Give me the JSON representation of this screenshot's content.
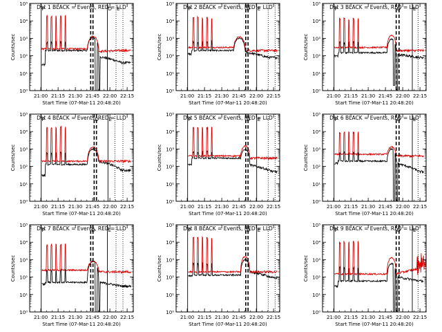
{
  "figure": {
    "xlabel": "Start Time (07-Mar-11 20:48:20)",
    "ylabel": "Counts/sec",
    "x_ticks": [
      "21:00",
      "21:15",
      "21:30",
      "21:45",
      "22:00",
      "22:15"
    ],
    "y_ticks": [
      "10⁰",
      "10¹",
      "10²",
      "10³",
      "10⁴",
      "10⁵"
    ],
    "flag_labels": [
      "P",
      "D",
      "E"
    ],
    "colors": {
      "events": "#000000",
      "lld": "#e00000"
    }
  },
  "chart_data": [
    {
      "type": "line",
      "title": "Det 1 BLACK = Events, RED = LLD",
      "x_unit": "minutes after 20:48:20",
      "xlim": [
        2,
        92
      ],
      "ylim": [
        1,
        100000
      ],
      "y_scale": "log",
      "series": [
        {
          "name": "Events",
          "color": "#000000",
          "baseline": 200,
          "spike_peak": 700,
          "pre_level": 30,
          "bump_peak": 1100,
          "post_level": 90,
          "post_dip": 0.1,
          "end_level": 40
        },
        {
          "name": "LLD",
          "color": "#e00000",
          "baseline": 250,
          "spike_peak": 22000,
          "bump_peak": 1300,
          "post_level": 180,
          "end_level": 200
        }
      ],
      "spikes_min": [
        17,
        21,
        25,
        29,
        33
      ],
      "bump_min": [
        52,
        62
      ],
      "vlines": [
        {
          "x": 12,
          "style": "solid",
          "label": "P"
        },
        {
          "x": 55,
          "style": "dashed",
          "label": ""
        },
        {
          "x": 57,
          "style": "dashed",
          "label": ""
        },
        {
          "x": 69.5,
          "style": "solid",
          "label": "D"
        },
        {
          "x": 77,
          "style": "dotted",
          "label": "E"
        },
        {
          "x": 83,
          "style": "dotted",
          "label": ""
        }
      ]
    },
    {
      "type": "line",
      "title": "Det 2 BLACK = Events, RED = LLD",
      "x_unit": "minutes after 20:48:20",
      "xlim": [
        2,
        92
      ],
      "ylim": [
        1,
        100000
      ],
      "y_scale": "log",
      "series": [
        {
          "name": "Events",
          "color": "#000000",
          "baseline": 200,
          "spike_peak": 800,
          "pre_level": 130,
          "bump_peak": 1000,
          "post_level": 160,
          "post_dip": 0,
          "end_level": 80
        },
        {
          "name": "LLD",
          "color": "#e00000",
          "baseline": 300,
          "spike_peak": 18000,
          "bump_peak": 1200,
          "post_level": 200,
          "end_level": 200
        }
      ],
      "spikes_min": [
        17,
        21,
        25,
        29,
        33
      ],
      "bump_min": [
        52,
        62
      ],
      "vlines": [
        {
          "x": 12,
          "style": "solid",
          "label": "P"
        },
        {
          "x": 62.5,
          "style": "dashed",
          "label": "D"
        },
        {
          "x": 64.5,
          "style": "dashed",
          "label": ""
        },
        {
          "x": 72,
          "style": "solid",
          "label": "E"
        },
        {
          "x": 82,
          "style": "dotted",
          "label": ""
        },
        {
          "x": 88,
          "style": "dotted",
          "label": ""
        }
      ]
    },
    {
      "type": "line",
      "title": "Det 3 BLACK = Events, RED = LLD",
      "x_unit": "minutes after 20:48:20",
      "xlim": [
        2,
        92
      ],
      "ylim": [
        1,
        100000
      ],
      "y_scale": "log",
      "series": [
        {
          "name": "Events",
          "color": "#000000",
          "baseline": 150,
          "spike_peak": 700,
          "pre_level": 100,
          "bump_peak": 900,
          "post_level": 120,
          "post_dip": 0.2,
          "end_level": 80
        },
        {
          "name": "LLD",
          "color": "#e00000",
          "baseline": 300,
          "spike_peak": 15000,
          "bump_peak": 1500,
          "post_level": 200,
          "end_level": 200
        }
      ],
      "spikes_min": [
        17,
        21,
        25,
        29,
        33
      ],
      "bump_min": [
        58,
        66
      ],
      "vlines": [
        {
          "x": 12,
          "style": "solid",
          "label": "P"
        },
        {
          "x": 66,
          "style": "dashed",
          "label": "D"
        },
        {
          "x": 68.5,
          "style": "dashed",
          "label": ""
        },
        {
          "x": 80,
          "style": "solid",
          "label": "E"
        },
        {
          "x": 85,
          "style": "dotted",
          "label": ""
        },
        {
          "x": 92,
          "style": "dotted",
          "label": ""
        }
      ]
    },
    {
      "type": "line",
      "title": "Det 4 BLACK = Events, RED = LLD",
      "x_unit": "minutes after 20:48:20",
      "xlim": [
        2,
        92
      ],
      "ylim": [
        1,
        100000
      ],
      "y_scale": "log",
      "series": [
        {
          "name": "Events",
          "color": "#000000",
          "baseline": 130,
          "spike_peak": 700,
          "pre_level": 30,
          "bump_peak": 1000,
          "post_level": 200,
          "post_dip": 0,
          "end_level": 60
        },
        {
          "name": "LLD",
          "color": "#e00000",
          "baseline": 200,
          "spike_peak": 20000,
          "bump_peak": 1300,
          "post_level": 200,
          "end_level": 200
        }
      ],
      "spikes_min": [
        17,
        21,
        25,
        29,
        33
      ],
      "bump_min": [
        52,
        62
      ],
      "vlines": [
        {
          "x": 12,
          "style": "solid",
          "label": "P"
        },
        {
          "x": 58,
          "style": "dashed",
          "label": "D"
        },
        {
          "x": 60,
          "style": "dashed",
          "label": ""
        },
        {
          "x": 70,
          "style": "solid",
          "label": "E"
        },
        {
          "x": 76,
          "style": "dotted",
          "label": ""
        },
        {
          "x": 83,
          "style": "dotted",
          "label": ""
        }
      ]
    },
    {
      "type": "line",
      "title": "Det 5 BLACK = Events, RED = LLD",
      "x_unit": "minutes after 20:48:20",
      "xlim": [
        2,
        92
      ],
      "ylim": [
        1,
        100000
      ],
      "y_scale": "log",
      "series": [
        {
          "name": "Events",
          "color": "#000000",
          "baseline": 300,
          "spike_peak": 800,
          "pre_level": 130,
          "bump_peak": 900,
          "post_level": 120,
          "post_dip": 0,
          "end_level": 50
        },
        {
          "name": "LLD",
          "color": "#e00000",
          "baseline": 400,
          "spike_peak": 20000,
          "bump_peak": 1500,
          "post_level": 300,
          "end_level": 300
        }
      ],
      "spikes_min": [
        17,
        21,
        25,
        29,
        33
      ],
      "bump_min": [
        58,
        66
      ],
      "vlines": [
        {
          "x": 12,
          "style": "solid",
          "label": "P"
        },
        {
          "x": 62.5,
          "style": "dashed",
          "label": "D"
        },
        {
          "x": 64.5,
          "style": "dashed",
          "label": ""
        },
        {
          "x": 72,
          "style": "solid",
          "label": "E"
        },
        {
          "x": 82,
          "style": "dotted",
          "label": ""
        },
        {
          "x": 88,
          "style": "dotted",
          "label": ""
        }
      ]
    },
    {
      "type": "line",
      "title": "Det 6 BLACK = Events, RED = LLD",
      "x_unit": "minutes after 20:48:20",
      "xlim": [
        2,
        92
      ],
      "ylim": [
        1,
        100000
      ],
      "y_scale": "log",
      "series": [
        {
          "name": "Events",
          "color": "#000000",
          "baseline": 200,
          "spike_peak": 700,
          "pre_level": 150,
          "bump_peak": 1000,
          "post_level": 150,
          "post_dip": 0.1,
          "end_level": 50
        },
        {
          "name": "LLD",
          "color": "#e00000",
          "baseline": 500,
          "spike_peak": 10000,
          "bump_peak": 1300,
          "post_level": 400,
          "end_level": 400
        }
      ],
      "spikes_min": [
        17,
        21,
        25,
        29,
        33
      ],
      "bump_min": [
        58,
        66
      ],
      "vlines": [
        {
          "x": 12,
          "style": "solid",
          "label": "P"
        },
        {
          "x": 66,
          "style": "dashed",
          "label": "D"
        },
        {
          "x": 68.5,
          "style": "dashed",
          "label": ""
        },
        {
          "x": 80,
          "style": "solid",
          "label": "E"
        },
        {
          "x": 85,
          "style": "dotted",
          "label": ""
        },
        {
          "x": 92,
          "style": "dotted",
          "label": ""
        }
      ]
    },
    {
      "type": "line",
      "title": "Det 7 BLACK = Events, RED = LLD",
      "x_unit": "minutes after 20:48:20",
      "xlim": [
        2,
        92
      ],
      "ylim": [
        1,
        100000
      ],
      "y_scale": "log",
      "series": [
        {
          "name": "Events",
          "color": "#000000",
          "baseline": 50,
          "spike_peak": 300,
          "pre_level": 40,
          "bump_peak": 800,
          "post_level": 50,
          "post_dip": 0.1,
          "end_level": 30
        },
        {
          "name": "LLD",
          "color": "#e00000",
          "baseline": 250,
          "spike_peak": 8000,
          "bump_peak": 800,
          "post_level": 200,
          "end_level": 200
        }
      ],
      "spikes_min": [
        17,
        21,
        25,
        29,
        33
      ],
      "bump_min": [
        52,
        62
      ],
      "vlines": [
        {
          "x": 12,
          "style": "solid",
          "label": "P"
        },
        {
          "x": 55,
          "style": "dashed",
          "label": "D"
        },
        {
          "x": 57,
          "style": "dashed",
          "label": ""
        },
        {
          "x": 69.5,
          "style": "solid",
          "label": "E"
        },
        {
          "x": 77,
          "style": "dotted",
          "label": ""
        },
        {
          "x": 83,
          "style": "dotted",
          "label": ""
        }
      ]
    },
    {
      "type": "line",
      "title": "Det 8 BLACK = Events, RED = LLD",
      "x_unit": "minutes after 20:48:20",
      "xlim": [
        2,
        92
      ],
      "ylim": [
        1,
        100000
      ],
      "y_scale": "log",
      "series": [
        {
          "name": "Events",
          "color": "#000000",
          "baseline": 130,
          "spike_peak": 700,
          "pre_level": 110,
          "bump_peak": 1000,
          "post_level": 200,
          "post_dip": 0,
          "end_level": 90
        },
        {
          "name": "LLD",
          "color": "#e00000",
          "baseline": 200,
          "spike_peak": 20000,
          "bump_peak": 1500,
          "post_level": 200,
          "end_level": 200
        }
      ],
      "spikes_min": [
        17,
        21,
        25,
        29,
        33
      ],
      "bump_min": [
        58,
        66
      ],
      "vlines": [
        {
          "x": 12,
          "style": "solid",
          "label": "P"
        },
        {
          "x": 62.5,
          "style": "dashed",
          "label": "D"
        },
        {
          "x": 64.5,
          "style": "dashed",
          "label": ""
        },
        {
          "x": 72,
          "style": "solid",
          "label": "E"
        },
        {
          "x": 82,
          "style": "dotted",
          "label": ""
        },
        {
          "x": 88,
          "style": "dotted",
          "label": ""
        }
      ]
    },
    {
      "type": "line",
      "title": "Det 9 BLACK = Events, RED = LLD",
      "x_unit": "minutes after 20:48:20",
      "xlim": [
        2,
        92
      ],
      "ylim": [
        1,
        100000
      ],
      "y_scale": "log",
      "series": [
        {
          "name": "Events",
          "color": "#000000",
          "baseline": 60,
          "spike_peak": 400,
          "pre_level": 30,
          "bump_peak": 600,
          "post_level": 100,
          "post_dip": 0.1,
          "end_level": 60
        },
        {
          "name": "LLD",
          "color": "#e00000",
          "baseline": 150,
          "spike_peak": 12000,
          "bump_peak": 1300,
          "post_level": 150,
          "end_level": 300,
          "late_burst": true
        }
      ],
      "spikes_min": [
        17,
        21,
        25,
        29,
        33
      ],
      "bump_min": [
        58,
        66
      ],
      "vlines": [
        {
          "x": 12,
          "style": "solid",
          "label": "P"
        },
        {
          "x": 66,
          "style": "dashed",
          "label": "D"
        },
        {
          "x": 68.5,
          "style": "dashed",
          "label": ""
        },
        {
          "x": 80,
          "style": "solid",
          "label": "E"
        },
        {
          "x": 85,
          "style": "dotted",
          "label": ""
        },
        {
          "x": 92,
          "style": "dotted",
          "label": ""
        }
      ]
    }
  ]
}
